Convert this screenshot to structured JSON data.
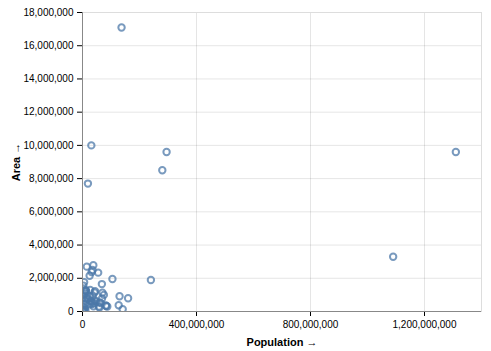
{
  "chart_data": {
    "type": "scatter",
    "x_label": "Population",
    "y_label": "Area",
    "color": "#4c78a8",
    "marker": "circle",
    "grid": true,
    "xlim": [
      0,
      1400000000
    ],
    "xticks": [
      0,
      {
        "value": 400000000,
        "label": "400,000,000"
      },
      {
        "value": 800000000,
        "label": "800,000,000"
      },
      {
        "value": 1200000000,
        "label": "1,200,000,000"
      }
    ],
    "ylim": [
      0,
      18000000
    ],
    "yticks": [
      0,
      {
        "value": 2000000,
        "label": "2,000,000"
      },
      {
        "value": 4000000,
        "label": "4,000,000"
      },
      {
        "value": 6000000,
        "label": "6,000,000"
      },
      {
        "value": 8000000,
        "label": "8,000,000"
      },
      {
        "value": 10000000,
        "label": "10,000,000"
      },
      {
        "value": 12000000,
        "label": "12,000,000"
      },
      {
        "value": 14000000,
        "label": "14,000,000"
      },
      {
        "value": 16000000,
        "label": "16,000,000"
      },
      {
        "value": 18000000,
        "label": "18,000,000"
      }
    ],
    "x": [
      137000000,
      31000000,
      19000000,
      295000000,
      280000000,
      1310000000,
      1090000000,
      240000000,
      15000000,
      38000000,
      32000000,
      55000000,
      25000000,
      35000000,
      105000000,
      5700000,
      68000000,
      2800000,
      27000000,
      9000000,
      12000000,
      11000000,
      11500000,
      44000000,
      42000000,
      70000000,
      8700000,
      3000000,
      75000000,
      36000000,
      130000000,
      25500000,
      2000000,
      19000000,
      160000000,
      68500000,
      16000000,
      10500000,
      42500000,
      29000000,
      8000000,
      60000000,
      47000000,
      33000000,
      64000000,
      40000000,
      127000000,
      82000000,
      83000000,
      87000000,
      58000000,
      59500000,
      141000000,
      38500000,
      9000000,
      33500000,
      26000000,
      5000000,
      10000000,
      2100000,
      1000000,
      3000000,
      8200000,
      500000,
      4000000,
      6000000
    ],
    "y": [
      17100000,
      10000000,
      7700000,
      9600000,
      8500000,
      9600000,
      3300000,
      1900000,
      2700000,
      2780000,
      2380000,
      2340000,
      2150000,
      2500000,
      1960000,
      1760000,
      1650000,
      1560000,
      1290000,
      1280000,
      1270000,
      1250000,
      1240000,
      1220000,
      1140000,
      1130000,
      1100000,
      1030000,
      1000000,
      950000,
      920000,
      910000,
      820000,
      800000,
      800000,
      780000,
      760000,
      750000,
      680000,
      650000,
      640000,
      550000,
      600000,
      580000,
      510000,
      500000,
      380000,
      360000,
      330000,
      300000,
      300000,
      240000,
      144000,
      310000,
      450000,
      450000,
      440000,
      100000,
      90000,
      20000,
      300000,
      50000,
      200000,
      10000,
      70000,
      120000
    ]
  }
}
